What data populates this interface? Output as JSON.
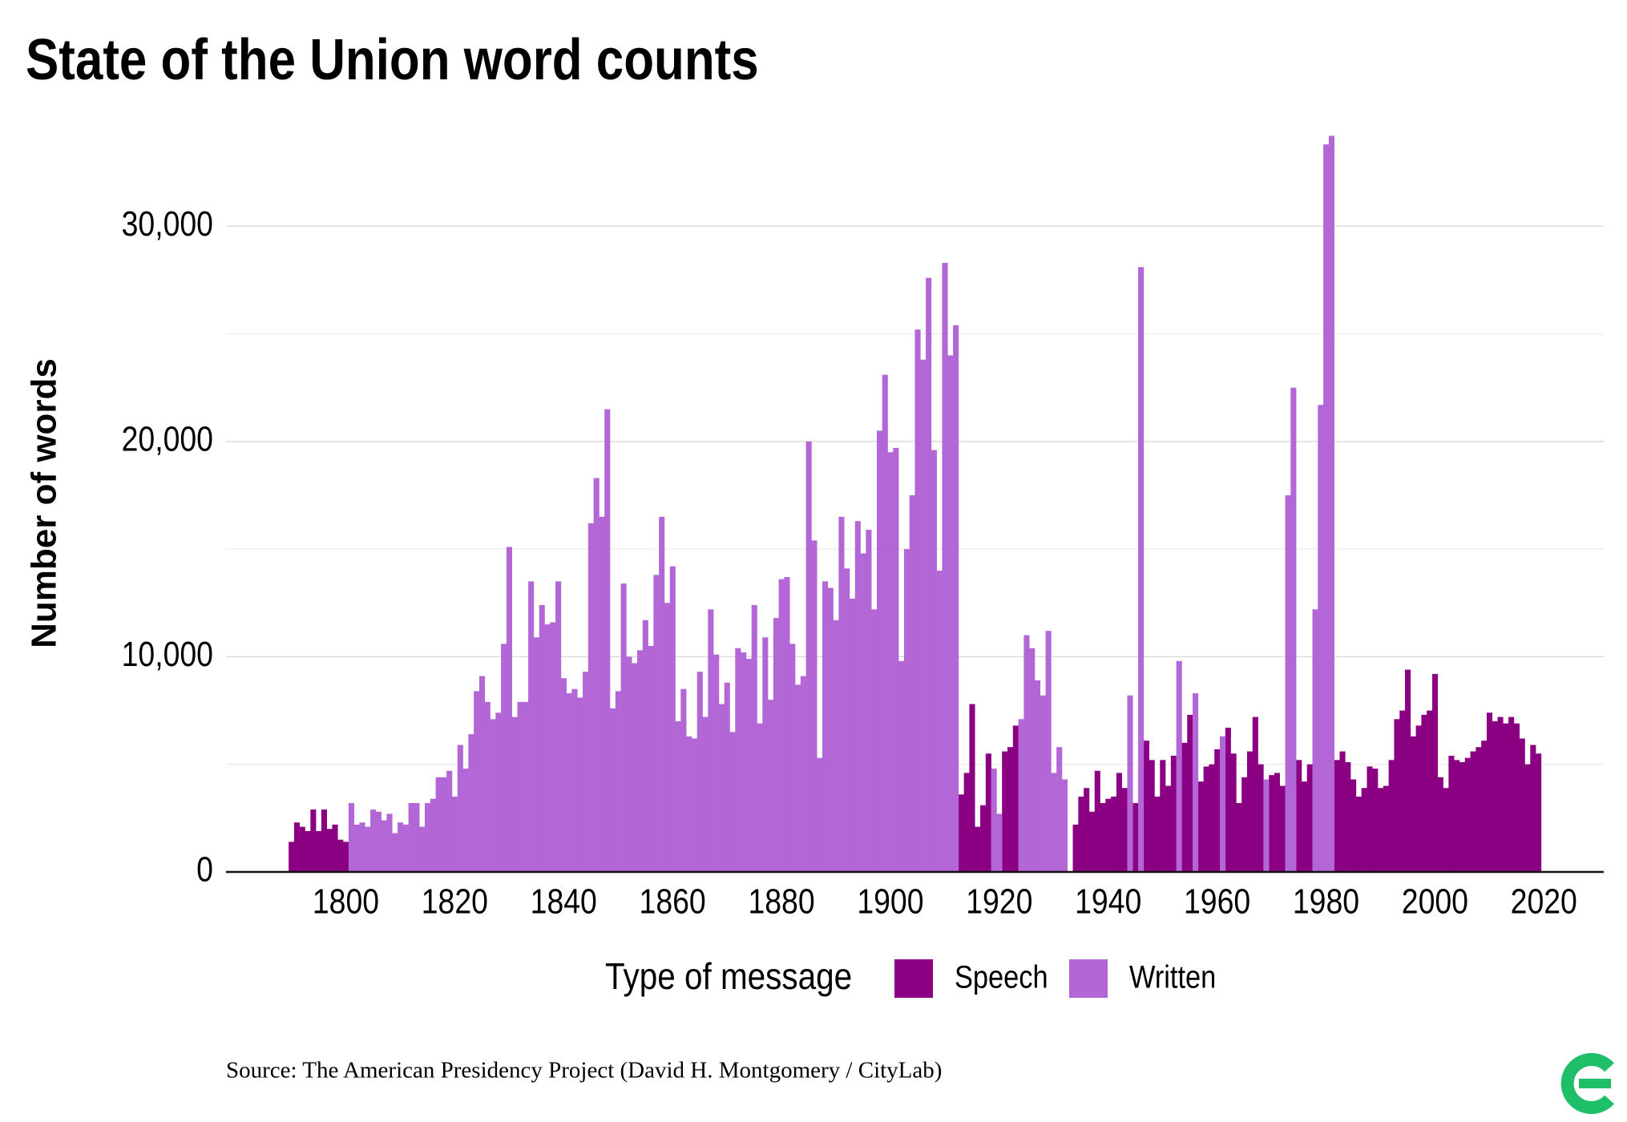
{
  "chart_data": {
    "type": "bar",
    "title": "State of the Union word counts",
    "y_label": "Number of words",
    "legend_title": "Type of message",
    "source": "Source: The American Presidency Project (David H. Montgomery / CityLab)",
    "xlim": [
      1778,
      2031
    ],
    "xticks": [
      1800,
      1820,
      1840,
      1860,
      1880,
      1900,
      1920,
      1940,
      1960,
      1980,
      2000,
      2020
    ],
    "ylim": [
      0,
      35000
    ],
    "yticks": [
      0,
      {
        "value": 10000,
        "label": "10,000"
      },
      {
        "value": 20000,
        "label": "20,000"
      },
      {
        "value": 30000,
        "label": "30,000"
      }
    ],
    "minor_yticks": [
      5000,
      15000,
      25000
    ],
    "grid": true,
    "x": [
      1790,
      1791,
      1792,
      1793,
      1794,
      1795,
      1796,
      1797,
      1798,
      1799,
      1800,
      1801,
      1802,
      1803,
      1804,
      1805,
      1806,
      1807,
      1808,
      1809,
      1810,
      1811,
      1812,
      1813,
      1814,
      1815,
      1816,
      1817,
      1818,
      1819,
      1820,
      1821,
      1822,
      1823,
      1824,
      1825,
      1826,
      1827,
      1828,
      1829,
      1830,
      1831,
      1832,
      1833,
      1834,
      1835,
      1836,
      1837,
      1838,
      1839,
      1840,
      1841,
      1842,
      1843,
      1844,
      1845,
      1846,
      1847,
      1848,
      1849,
      1850,
      1851,
      1852,
      1853,
      1854,
      1855,
      1856,
      1857,
      1858,
      1859,
      1860,
      1861,
      1862,
      1863,
      1864,
      1865,
      1866,
      1867,
      1868,
      1869,
      1870,
      1871,
      1872,
      1873,
      1874,
      1875,
      1876,
      1877,
      1878,
      1879,
      1880,
      1881,
      1882,
      1883,
      1884,
      1885,
      1886,
      1887,
      1888,
      1889,
      1890,
      1891,
      1892,
      1893,
      1894,
      1895,
      1896,
      1897,
      1898,
      1899,
      1900,
      1901,
      1902,
      1903,
      1904,
      1905,
      1906,
      1907,
      1908,
      1909,
      1910,
      1911,
      1912,
      1913,
      1914,
      1915,
      1916,
      1917,
      1918,
      1919,
      1920,
      1921,
      1922,
      1923,
      1924,
      1925,
      1926,
      1927,
      1928,
      1929,
      1930,
      1931,
      1932,
      1933,
      1934,
      1935,
      1936,
      1937,
      1938,
      1939,
      1940,
      1941,
      1942,
      1943,
      1944,
      1945,
      1946,
      1947,
      1948,
      1949,
      1950,
      1951,
      1952,
      1953,
      1954,
      1955,
      1956,
      1957,
      1958,
      1959,
      1960,
      1961,
      1962,
      1963,
      1964,
      1965,
      1966,
      1967,
      1968,
      1969,
      1970,
      1971,
      1972,
      1973,
      1974,
      1975,
      1976,
      1977,
      1978,
      1979,
      1980,
      1981,
      1982,
      1983,
      1984,
      1985,
      1986,
      1987,
      1988,
      1989,
      1990,
      1991,
      1992,
      1993,
      1994,
      1995,
      1996,
      1997,
      1998,
      1999,
      2000,
      2001,
      2002,
      2003,
      2004,
      2005,
      2006,
      2007,
      2008,
      2009,
      2010,
      2011,
      2012,
      2013,
      2014,
      2015,
      2016,
      2017,
      2018,
      2019
    ],
    "series": [
      {
        "name": "Speech",
        "color": "#8b0082",
        "values": [
          1400,
          2300,
          2100,
          1900,
          2900,
          1900,
          2900,
          2000,
          2200,
          1500,
          1400,
          null,
          null,
          null,
          null,
          null,
          null,
          null,
          null,
          null,
          null,
          null,
          null,
          null,
          null,
          null,
          null,
          null,
          null,
          null,
          null,
          null,
          null,
          null,
          null,
          null,
          null,
          null,
          null,
          null,
          null,
          null,
          null,
          null,
          null,
          null,
          null,
          null,
          null,
          null,
          null,
          null,
          null,
          null,
          null,
          null,
          null,
          null,
          null,
          null,
          null,
          null,
          null,
          null,
          null,
          null,
          null,
          null,
          null,
          null,
          null,
          null,
          null,
          null,
          null,
          null,
          null,
          null,
          null,
          null,
          null,
          null,
          null,
          null,
          null,
          null,
          null,
          null,
          null,
          null,
          null,
          null,
          null,
          null,
          null,
          null,
          null,
          null,
          null,
          null,
          null,
          null,
          null,
          null,
          null,
          null,
          null,
          null,
          null,
          null,
          null,
          null,
          null,
          null,
          null,
          null,
          null,
          null,
          null,
          null,
          null,
          null,
          null,
          3600,
          4600,
          7800,
          2100,
          3100,
          5500,
          null,
          null,
          5600,
          5800,
          6800,
          null,
          null,
          null,
          null,
          null,
          null,
          null,
          null,
          null,
          null,
          2200,
          3500,
          3900,
          2800,
          4700,
          3200,
          3400,
          3500,
          4600,
          3900,
          null,
          3200,
          null,
          6100,
          5200,
          3500,
          5200,
          4000,
          5400,
          null,
          6000,
          7300,
          null,
          4200,
          4900,
          5000,
          5700,
          null,
          6700,
          5500,
          3200,
          4400,
          5600,
          7200,
          5000,
          null,
          4500,
          4600,
          4000,
          null,
          null,
          5200,
          4200,
          5000,
          null,
          null,
          null,
          null,
          5200,
          5600,
          5100,
          4300,
          3500,
          3900,
          4900,
          4800,
          3900,
          4000,
          5200,
          7100,
          7500,
          9400,
          6300,
          6800,
          7300,
          7500,
          9200,
          4400,
          3900,
          5400,
          5200,
          5100,
          5300,
          5600,
          5800,
          6100,
          7400,
          7000,
          7200,
          6900,
          7200,
          6900,
          6200,
          5000,
          5900,
          5500
        ]
      },
      {
        "name": "Written",
        "color": "#b366d6",
        "values": [
          null,
          null,
          null,
          null,
          null,
          null,
          null,
          null,
          null,
          null,
          null,
          3200,
          2200,
          2300,
          2100,
          2900,
          2800,
          2400,
          2700,
          1800,
          2300,
          2200,
          3200,
          3200,
          2100,
          3200,
          3400,
          4400,
          4400,
          4700,
          3500,
          5900,
          4800,
          6400,
          8400,
          9100,
          7900,
          7100,
          7400,
          10600,
          15100,
          7200,
          7900,
          7900,
          13500,
          10900,
          12400,
          11500,
          11600,
          13500,
          9000,
          8300,
          8500,
          8100,
          9300,
          16200,
          18300,
          16500,
          21500,
          7600,
          8400,
          13400,
          10000,
          9700,
          10300,
          11700,
          10500,
          13800,
          16500,
          12500,
          14200,
          7000,
          8500,
          6300,
          6200,
          9300,
          7200,
          12200,
          10100,
          7800,
          8800,
          6500,
          10400,
          10200,
          9900,
          12400,
          6900,
          10900,
          8000,
          11800,
          13600,
          13700,
          10600,
          8700,
          9100,
          20000,
          15400,
          5300,
          13500,
          13200,
          11700,
          16500,
          14100,
          12700,
          16300,
          14800,
          15900,
          12200,
          20500,
          23100,
          19500,
          19700,
          9800,
          15000,
          17500,
          25200,
          23800,
          27600,
          19600,
          14000,
          28300,
          24000,
          25400,
          null,
          null,
          null,
          null,
          null,
          null,
          4800,
          2700,
          null,
          null,
          null,
          7100,
          11000,
          10400,
          8900,
          8200,
          11200,
          4600,
          5800,
          4300,
          null,
          null,
          null,
          null,
          null,
          null,
          null,
          null,
          null,
          null,
          null,
          8200,
          null,
          28100,
          null,
          null,
          null,
          null,
          null,
          null,
          9800,
          null,
          null,
          8300,
          null,
          null,
          null,
          null,
          6300,
          null,
          null,
          null,
          null,
          null,
          null,
          null,
          4300,
          null,
          null,
          null,
          17500,
          22500,
          null,
          null,
          null,
          12200,
          21700,
          33800,
          34200,
          null,
          null,
          null,
          null,
          null,
          null,
          null,
          null,
          null,
          null,
          null,
          null,
          null,
          null,
          null,
          null,
          null,
          null,
          null,
          null,
          null,
          null,
          null,
          null,
          null,
          null,
          null,
          null,
          null,
          null,
          null,
          null,
          null,
          null,
          null,
          null,
          null,
          null
        ]
      }
    ]
  }
}
